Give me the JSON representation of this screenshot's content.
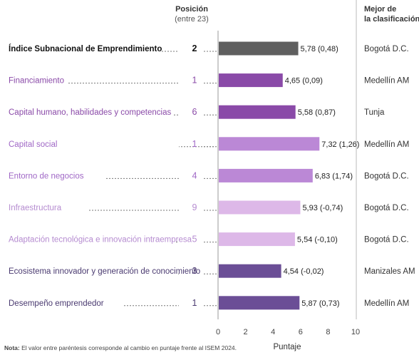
{
  "chart_data": {
    "type": "bar",
    "orientation": "horizontal",
    "header": {
      "position_title": "Posición",
      "position_sub": "(entre 23)",
      "best_title_1": "Mejor de",
      "best_title_2": "la clasificación"
    },
    "categories": [
      "Índice Subnacional de Emprendimiento",
      "Financiamiento",
      "Capital humano, habilidades y competencias",
      "Capital social",
      "Entorno de negocios",
      "Infraestructura",
      "Adaptación tecnológica e innovación intraempresa",
      "Ecosistema innovador y generación de conocimiento",
      "Desempeño emprendedor"
    ],
    "positions": [
      "2",
      "1",
      "6",
      "1",
      "4",
      "9",
      "5",
      "3",
      "1"
    ],
    "values": [
      5.78,
      4.65,
      5.58,
      7.32,
      6.83,
      5.93,
      5.54,
      4.54,
      5.87
    ],
    "value_labels": [
      "5,78 (0,48)",
      "4,65 (0,09)",
      "5,58 (0,87)",
      "7,32 (1,26)",
      "6,83 (1,74)",
      "5,93 (-0,74)",
      "5,54 (-0,10)",
      "4,54 (-0,02)",
      "5,87 (0,73)"
    ],
    "best": [
      "Bogotá D.C.",
      "Medellín AM",
      "Tunja",
      "Medellín AM",
      "Bogotá D.C.",
      "Bogotá D.C.",
      "Bogotá D.C.",
      "Manizales AM",
      "Medellín AM"
    ],
    "colors": [
      "#5f5f5f",
      "#8a4aa8",
      "#8a4aa8",
      "#bb88d6",
      "#bb88d6",
      "#ddb8e8",
      "#ddb8e8",
      "#6b4e96",
      "#6b4e96"
    ],
    "label_colors": [
      "#111111",
      "#8a4aa8",
      "#8a4aa8",
      "#a068c6",
      "#a068c6",
      "#b58bd0",
      "#b58bd0",
      "#4a3a70",
      "#4a3a70"
    ],
    "xticks": [
      "0",
      "2",
      "4",
      "6",
      "8",
      "10"
    ],
    "xlim": [
      0,
      10
    ],
    "xlabel": "Puntaje",
    "note_bold": "Nota:",
    "note_text": " El valor entre paréntesis corresponde al cambio en puntaje frente al ISEM 2024."
  }
}
